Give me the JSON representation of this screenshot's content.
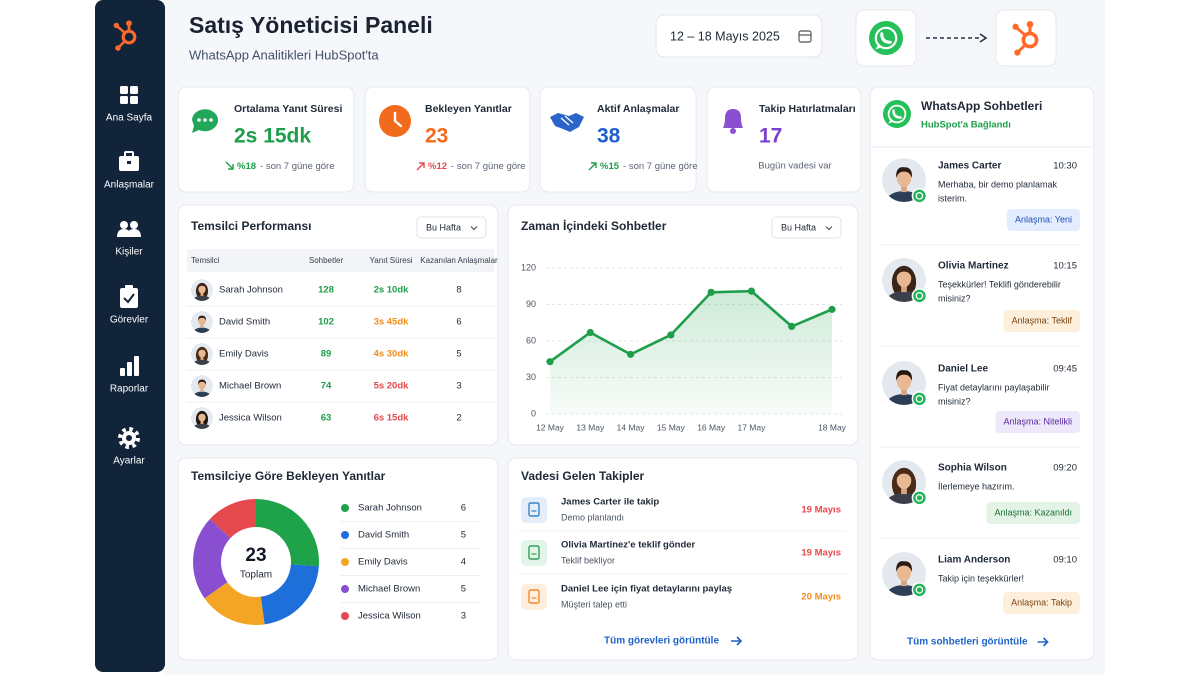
{
  "sidebar": {
    "items": [
      "Ana Sayfa",
      "Anlaşmalar",
      "Kişiler",
      "Görevler",
      "Raporlar",
      "Ayarlar"
    ]
  },
  "header": {
    "title": "Satış Yöneticisi Paneli",
    "subtitle": "WhatsApp Analitikleri HubSpot'ta",
    "date_range": "12 – 18 Mayıs 2025"
  },
  "kpis": [
    {
      "label": "Ortalama Yanıt Süresi",
      "value": "2s 15dk",
      "change": "%18",
      "note": "- son 7 güne göre",
      "trend": "down",
      "color": "#1e9e4a",
      "change_color": "#1e9e4a"
    },
    {
      "label": "Bekleyen Yanıtlar",
      "value": "23",
      "change": "%12",
      "note": "- son 7 güne göre",
      "trend": "up",
      "color": "#f26b1d",
      "change_color": "#e5484d"
    },
    {
      "label": "Aktif Anlaşmalar",
      "value": "38",
      "change": "%15",
      "note": "- son 7 güne göre",
      "trend": "up",
      "color": "#1e5fc9",
      "change_color": "#1e9e4a"
    },
    {
      "label": "Takip Hatırlatmaları",
      "value": "17",
      "note": "Bugün vadesi var",
      "color": "#7b3fd1"
    }
  ],
  "performance": {
    "title": "Temsilci Performansı",
    "filter": "Bu Hafta",
    "columns": [
      "Temsilci",
      "Sohbetler",
      "Yanıt Süresi",
      "Kazanılan Anlaşmalar"
    ],
    "rows": [
      [
        "Sarah Johnson",
        128,
        "2s 10dk",
        8
      ],
      [
        "David Smith",
        102,
        "3s 45dk",
        6
      ],
      [
        "Emily Davis",
        89,
        "4s 30dk",
        5
      ],
      [
        "Michael Brown",
        74,
        "5s 20dk",
        3
      ],
      [
        "Jessica Wilson",
        63,
        "6s 15dk",
        2
      ]
    ],
    "time_colors": [
      "#1e9e4a",
      "#f28c1d",
      "#f28c1d",
      "#e5484d",
      "#e5484d"
    ]
  },
  "chart_data": [
    {
      "type": "line",
      "title": "Zaman İçindeki Sohbetler",
      "filter": "Bu Hafta",
      "categories": [
        "12 May",
        "13 May",
        "14 May",
        "15 May",
        "16 May",
        "17 May",
        null,
        "18 May"
      ],
      "values": [
        43,
        67,
        49,
        65,
        100,
        101,
        72,
        86
      ],
      "color": "#1e9e4a",
      "ylim": [
        0,
        120
      ],
      "yticks": [
        0,
        30,
        60,
        90,
        120
      ],
      "grid": true
    },
    {
      "type": "pie",
      "title": "Temsilciye Göre Bekleyen Yanıtlar",
      "total": 23,
      "total_label": "Toplam",
      "categories": [
        "Sarah Johnson",
        "David Smith",
        "Emily Davis",
        "Michael Brown",
        "Jessica Wilson"
      ],
      "values": [
        6,
        5,
        4,
        5,
        3
      ],
      "colors": [
        "#1fa34a",
        "#1e6fd9",
        "#f5a524",
        "#8a4fd0",
        "#e5484d"
      ]
    }
  ],
  "followups": {
    "title": "Vadesi Gelen Takipler",
    "items": [
      {
        "title": "James Carter ile takip",
        "subtitle": "Demo planlandı",
        "date": "19 Mayıs",
        "color": "#e5484d",
        "icon_color": "#3b82c4",
        "icon_bg": "#e3eefa"
      },
      {
        "title": "Olivia Martinez'e teklif gönder",
        "subtitle": "Teklif bekliyor",
        "date": "19 Mayıs",
        "color": "#e5484d",
        "icon_color": "#2f9e55",
        "icon_bg": "#e3f4e8"
      },
      {
        "title": "Daniel Lee için fiyat detaylarını paylaş",
        "subtitle": "Müşteri talep etti",
        "date": "20 Mayıs",
        "color": "#f28c1d",
        "icon_color": "#ef8a2e",
        "icon_bg": "#fdeedd"
      }
    ],
    "link": "Tüm görevleri görüntüle"
  },
  "chats": {
    "title": "WhatsApp Sohbetleri",
    "subtitle": "HubSpot'a Bağlandı",
    "items": [
      {
        "name": "James Carter",
        "time": "10:30",
        "message": [
          "Merhaba, bir demo planlamak",
          "isterim."
        ],
        "badge": "Anlaşma: Yeni",
        "badge_bg": "#e4edff",
        "badge_color": "#1e4fb0"
      },
      {
        "name": "Olivia Martinez",
        "time": "10:15",
        "message": [
          "Teşekkürler! Teklifi gönderebilir",
          "misiniz?"
        ],
        "badge": "Anlaşma: Teklif",
        "badge_bg": "#fdefdc",
        "badge_color": "#7a4210"
      },
      {
        "name": "Daniel Lee",
        "time": "09:45",
        "message": [
          "Fiyat detaylarını paylaşabilir",
          "misiniz?"
        ],
        "badge": "Anlaşma: Nitelikli",
        "badge_bg": "#eee8fb",
        "badge_color": "#55299e"
      },
      {
        "name": "Sophia Wilson",
        "time": "09:20",
        "message": [
          "İlerlemeye hazırım."
        ],
        "badge": "Anlaşma: Kazanıldı",
        "badge_bg": "#e3f4e7",
        "badge_color": "#1a6e35"
      },
      {
        "name": "Liam Anderson",
        "time": "09:10",
        "message": [
          "Takip için teşekkürler!"
        ],
        "badge": "Anlaşma: Takip",
        "badge_bg": "#fdefdc",
        "badge_color": "#7a4210"
      }
    ],
    "link": "Tüm sohbetleri görüntüle"
  }
}
